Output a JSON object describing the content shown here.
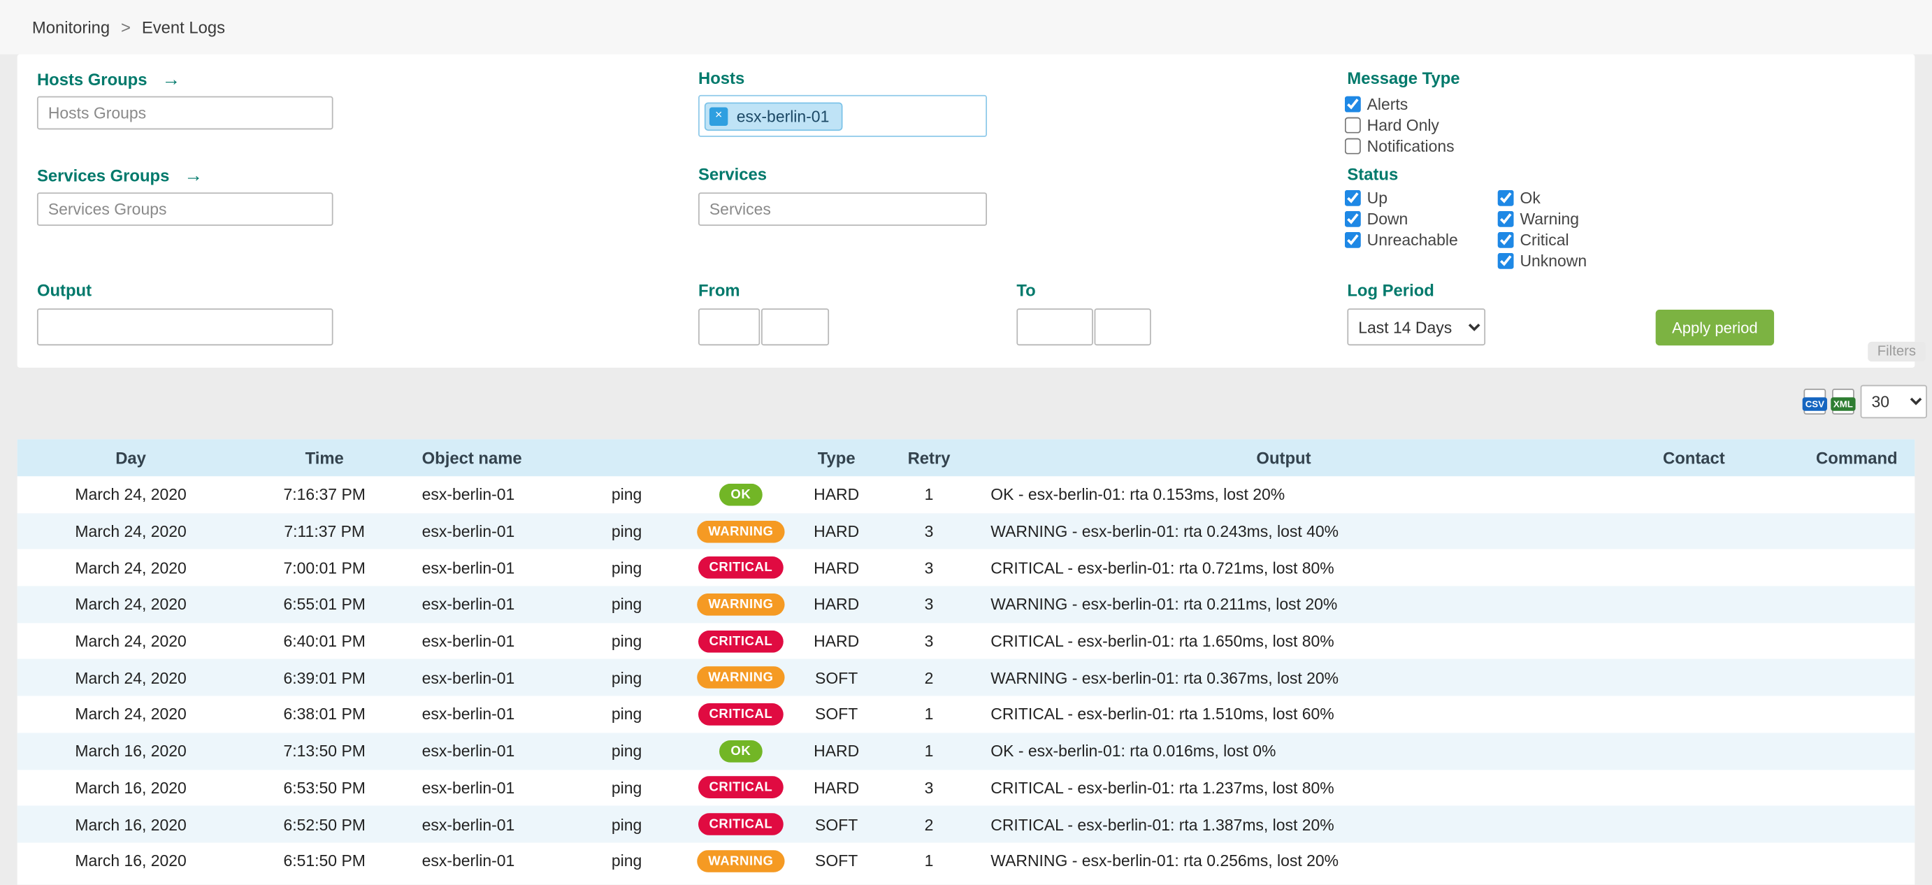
{
  "breadcrumb": {
    "items": [
      "Monitoring",
      "Event Logs"
    ],
    "separator": ">"
  },
  "filters": {
    "hosts_groups": {
      "label": "Hosts Groups",
      "arrow_icon": "→",
      "placeholder": "Hosts Groups",
      "value": ""
    },
    "services_groups": {
      "label": "Services Groups",
      "arrow_icon": "→",
      "placeholder": "Services Groups",
      "value": ""
    },
    "output": {
      "label": "Output",
      "value": ""
    },
    "hosts": {
      "label": "Hosts",
      "chips": [
        {
          "text": "esx-berlin-01",
          "remove_icon": "×"
        }
      ]
    },
    "services": {
      "label": "Services",
      "placeholder": "Services",
      "value": ""
    },
    "from": {
      "label": "From",
      "date": "",
      "time": ""
    },
    "to": {
      "label": "To",
      "date": "",
      "time": ""
    },
    "message_type": {
      "label": "Message Type",
      "options": [
        {
          "label": "Alerts",
          "checked": true
        },
        {
          "label": "Hard Only",
          "checked": false
        },
        {
          "label": "Notifications",
          "checked": false
        }
      ]
    },
    "status": {
      "label": "Status",
      "col1": [
        {
          "label": "Up",
          "checked": true
        },
        {
          "label": "Down",
          "checked": true
        },
        {
          "label": "Unreachable",
          "checked": true
        }
      ],
      "col2": [
        {
          "label": "Ok",
          "checked": true
        },
        {
          "label": "Warning",
          "checked": true
        },
        {
          "label": "Critical",
          "checked": true
        },
        {
          "label": "Unknown",
          "checked": true
        }
      ]
    },
    "log_period": {
      "label": "Log Period",
      "selected": "Last 14 Days"
    },
    "apply_button_label": "Apply period",
    "filters_tab_label": "Filters"
  },
  "toolbar": {
    "export_csv": "CSV",
    "export_xml": "XML",
    "page_size": "30"
  },
  "table": {
    "columns": [
      "Day",
      "Time",
      "Object name",
      "",
      "",
      "Type",
      "Retry",
      "Output",
      "Contact",
      "Command"
    ],
    "rows": [
      {
        "day": "March 24, 2020",
        "time": "7:16:37 PM",
        "object": "esx-berlin-01",
        "service": "ping",
        "status": "OK",
        "type": "HARD",
        "retry": "1",
        "output": "OK - esx-berlin-01: rta 0.153ms, lost 20%",
        "contact": "",
        "command": ""
      },
      {
        "day": "March 24, 2020",
        "time": "7:11:37 PM",
        "object": "esx-berlin-01",
        "service": "ping",
        "status": "WARNING",
        "type": "HARD",
        "retry": "3",
        "output": "WARNING - esx-berlin-01: rta 0.243ms, lost 40%",
        "contact": "",
        "command": ""
      },
      {
        "day": "March 24, 2020",
        "time": "7:00:01 PM",
        "object": "esx-berlin-01",
        "service": "ping",
        "status": "CRITICAL",
        "type": "HARD",
        "retry": "3",
        "output": "CRITICAL - esx-berlin-01: rta 0.721ms, lost 80%",
        "contact": "",
        "command": ""
      },
      {
        "day": "March 24, 2020",
        "time": "6:55:01 PM",
        "object": "esx-berlin-01",
        "service": "ping",
        "status": "WARNING",
        "type": "HARD",
        "retry": "3",
        "output": "WARNING - esx-berlin-01: rta 0.211ms, lost 20%",
        "contact": "",
        "command": ""
      },
      {
        "day": "March 24, 2020",
        "time": "6:40:01 PM",
        "object": "esx-berlin-01",
        "service": "ping",
        "status": "CRITICAL",
        "type": "HARD",
        "retry": "3",
        "output": "CRITICAL - esx-berlin-01: rta 1.650ms, lost 80%",
        "contact": "",
        "command": ""
      },
      {
        "day": "March 24, 2020",
        "time": "6:39:01 PM",
        "object": "esx-berlin-01",
        "service": "ping",
        "status": "WARNING",
        "type": "SOFT",
        "retry": "2",
        "output": "WARNING - esx-berlin-01: rta 0.367ms, lost 20%",
        "contact": "",
        "command": ""
      },
      {
        "day": "March 24, 2020",
        "time": "6:38:01 PM",
        "object": "esx-berlin-01",
        "service": "ping",
        "status": "CRITICAL",
        "type": "SOFT",
        "retry": "1",
        "output": "CRITICAL - esx-berlin-01: rta 1.510ms, lost 60%",
        "contact": "",
        "command": ""
      },
      {
        "day": "March 16, 2020",
        "time": "7:13:50 PM",
        "object": "esx-berlin-01",
        "service": "ping",
        "status": "OK",
        "type": "HARD",
        "retry": "1",
        "output": "OK - esx-berlin-01: rta 0.016ms, lost 0%",
        "contact": "",
        "command": ""
      },
      {
        "day": "March 16, 2020",
        "time": "6:53:50 PM",
        "object": "esx-berlin-01",
        "service": "ping",
        "status": "CRITICAL",
        "type": "HARD",
        "retry": "3",
        "output": "CRITICAL - esx-berlin-01: rta 1.237ms, lost 80%",
        "contact": "",
        "command": ""
      },
      {
        "day": "March 16, 2020",
        "time": "6:52:50 PM",
        "object": "esx-berlin-01",
        "service": "ping",
        "status": "CRITICAL",
        "type": "SOFT",
        "retry": "2",
        "output": "CRITICAL - esx-berlin-01: rta 1.387ms, lost 20%",
        "contact": "",
        "command": ""
      },
      {
        "day": "March 16, 2020",
        "time": "6:51:50 PM",
        "object": "esx-berlin-01",
        "service": "ping",
        "status": "WARNING",
        "type": "SOFT",
        "retry": "1",
        "output": "WARNING - esx-berlin-01: rta 0.256ms, lost 20%",
        "contact": "",
        "command": ""
      }
    ]
  },
  "colors": {
    "label": "#00796b",
    "apply_button": "#7cb342",
    "checkbox": "#1e88e5",
    "table_header_bg": "#d6edf8",
    "row_alt_bg": "#edf6fb",
    "chip_bg": "#bfe3f6",
    "chip_border": "#7cc3e8",
    "status": {
      "ok": "#72b626",
      "warning": "#f59a23",
      "critical": "#e00b41"
    }
  }
}
